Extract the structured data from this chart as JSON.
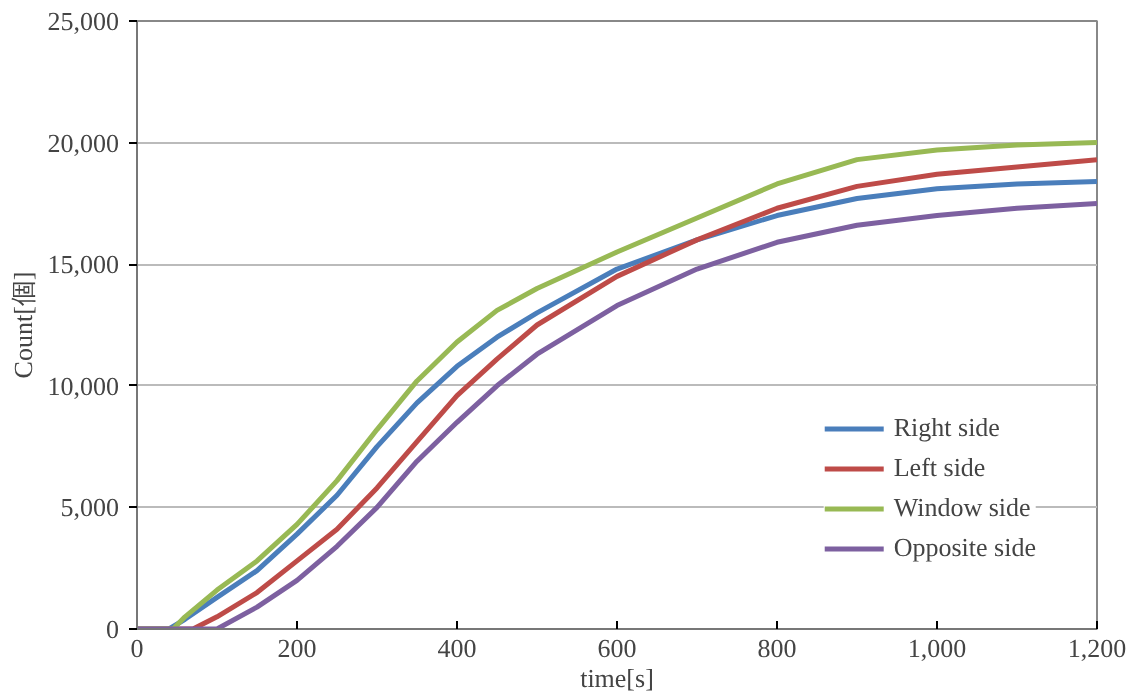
{
  "chart_data": {
    "type": "line",
    "xlabel": "time[s]",
    "ylabel": "Count[個]",
    "xlim": [
      0,
      1200
    ],
    "xticks": [
      0,
      200,
      400,
      600,
      {
        "value": 800,
        "label": "800"
      },
      {
        "value": 1000,
        "label": "1,000"
      },
      {
        "value": 1200,
        "label": "1,200"
      }
    ],
    "ylim": [
      0,
      25000
    ],
    "yticks": [
      {
        "value": 0,
        "label": "0"
      },
      {
        "value": 5000,
        "label": "5,000"
      },
      {
        "value": 10000,
        "label": "10,000"
      },
      {
        "value": 15000,
        "label": "15,000"
      },
      {
        "value": 20000,
        "label": "20,000"
      },
      {
        "value": 25000,
        "label": "25,000"
      }
    ],
    "grid": "y",
    "legend": "bottom right",
    "marker": "none",
    "line_style": "solid",
    "series": [
      {
        "name": "Right side",
        "color": "#4a7ebb",
        "x": [
          0,
          40,
          60,
          100,
          150,
          200,
          250,
          300,
          350,
          400,
          450,
          500,
          600,
          700,
          800,
          900,
          1000,
          1100,
          1200
        ],
        "values": [
          0,
          0,
          400,
          1300,
          2400,
          3900,
          5500,
          7500,
          9300,
          10800,
          12000,
          13000,
          14800,
          16000,
          17000,
          17700,
          18100,
          18300,
          18400
        ]
      },
      {
        "name": "Left side",
        "color": "#be4b48",
        "x": [
          0,
          70,
          100,
          150,
          200,
          250,
          300,
          350,
          400,
          450,
          500,
          600,
          700,
          800,
          900,
          1000,
          1100,
          1200
        ],
        "values": [
          0,
          0,
          500,
          1500,
          2800,
          4100,
          5800,
          7700,
          9600,
          11100,
          12500,
          14500,
          16000,
          17300,
          18200,
          18700,
          19000,
          19300
        ]
      },
      {
        "name": "Window side",
        "color": "#98b954",
        "x": [
          0,
          45,
          60,
          100,
          150,
          200,
          250,
          300,
          350,
          400,
          450,
          500,
          600,
          700,
          800,
          900,
          1000,
          1100,
          1200
        ],
        "values": [
          0,
          0,
          500,
          1600,
          2800,
          4300,
          6100,
          8200,
          10200,
          11800,
          13100,
          14000,
          15500,
          16900,
          18300,
          19300,
          19700,
          19900,
          20000
        ]
      },
      {
        "name": "Opposite side",
        "color": "#7d60a0",
        "x": [
          0,
          100,
          150,
          200,
          250,
          300,
          350,
          400,
          450,
          500,
          600,
          700,
          800,
          900,
          1000,
          1100,
          1200
        ],
        "values": [
          0,
          0,
          900,
          2000,
          3400,
          5000,
          6900,
          8500,
          10000,
          11300,
          13300,
          14800,
          15900,
          16600,
          17000,
          17300,
          17500
        ]
      }
    ]
  }
}
